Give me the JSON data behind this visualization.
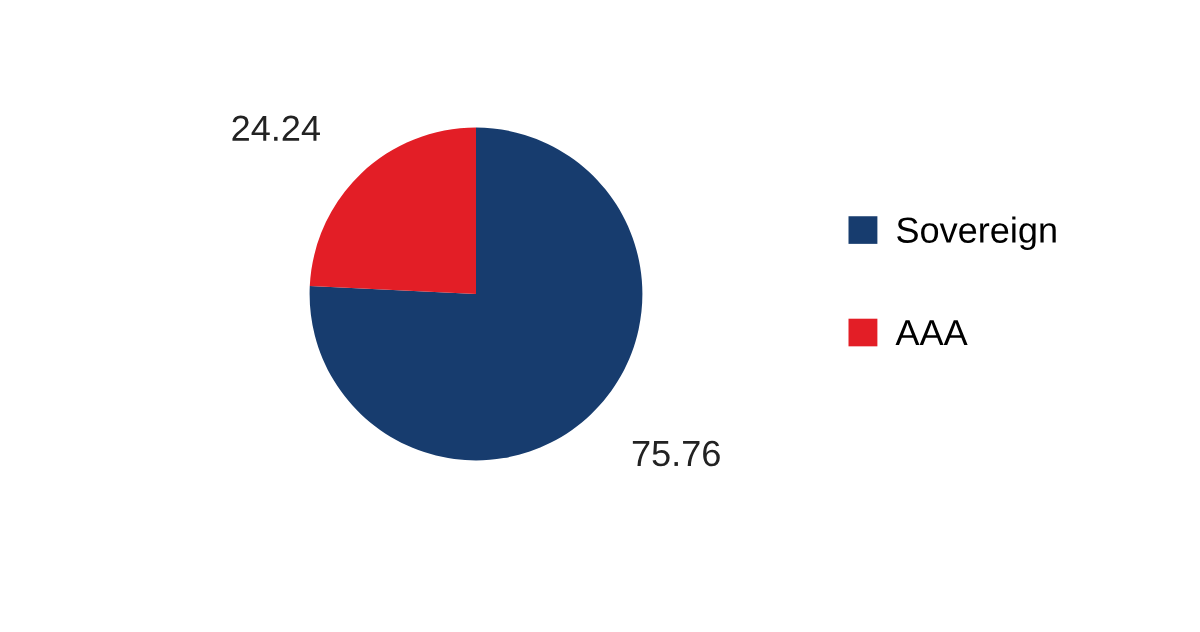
{
  "chart_data": {
    "type": "pie",
    "categories": [
      "Sovereign",
      "AAA"
    ],
    "values": [
      75.76,
      24.24
    ],
    "colors": [
      "#173c6e",
      "#e31e26"
    ],
    "data_labels": true,
    "legend": "right"
  }
}
